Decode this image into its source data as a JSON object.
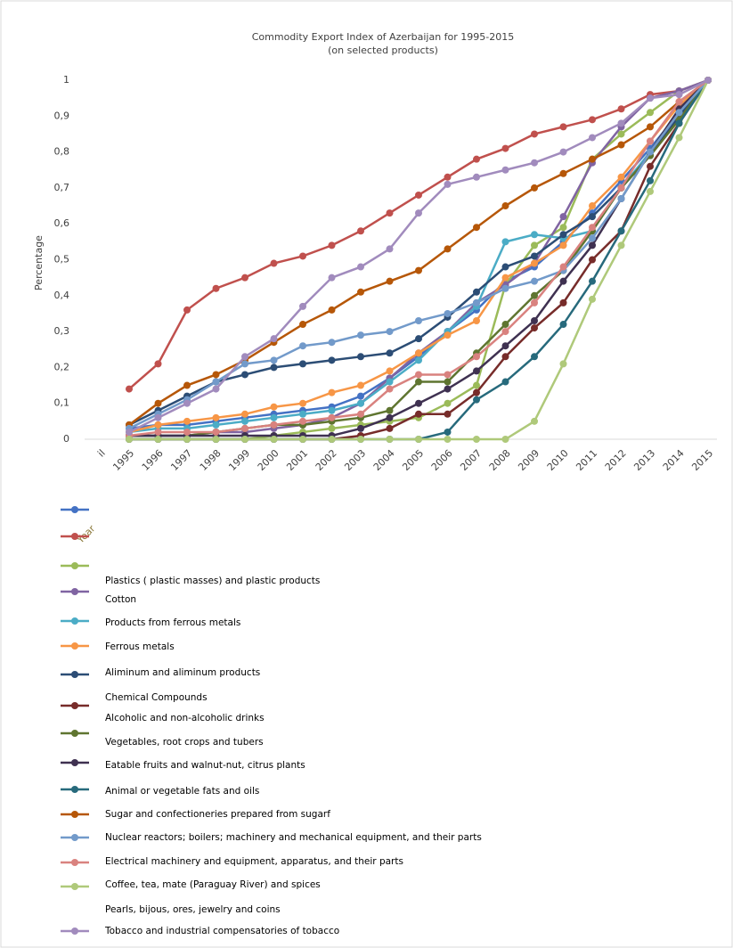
{
  "chart_data": {
    "type": "line",
    "title": "Commodity  Export Index of Azerbaijan for 1995-2015",
    "subtitle": "(on selected products)",
    "y_label": "Percentage",
    "x_label": "Year",
    "categories": [
      "il",
      "1995",
      "1996",
      "1997",
      "1998",
      "1999",
      "2000",
      "2001",
      "2002",
      "2003",
      "2004",
      "2005",
      "2006",
      "2007",
      "2008",
      "2009",
      "2010",
      "2011",
      "2012",
      "2013",
      "2014",
      "2015"
    ],
    "ylim": [
      0,
      1
    ],
    "yticks": [
      0,
      {
        "value": 0.1,
        "label": "0,1"
      },
      {
        "value": 0.2,
        "label": "0,2"
      },
      {
        "value": 0.3,
        "label": "0,3"
      },
      {
        "value": 0.4,
        "label": "0,4"
      },
      {
        "value": 0.5,
        "label": "0,5"
      },
      {
        "value": 0.6,
        "label": "0,6"
      },
      {
        "value": 0.7,
        "label": "0,7"
      },
      {
        "value": 0.8,
        "label": "0,8"
      },
      {
        "value": 0.9,
        "label": "0,9"
      },
      1
    ],
    "grid": false,
    "series": [
      {
        "name": "Plastics ( plastic masses) and  plastic products",
        "color": "#4472c4",
        "values": [
          null,
          0.03,
          0.04,
          0.04,
          0.05,
          0.06,
          0.07,
          0.08,
          0.09,
          0.12,
          0.17,
          0.23,
          0.3,
          0.36,
          0.44,
          0.48,
          0.55,
          0.63,
          0.72,
          0.81,
          0.91,
          1
        ]
      },
      {
        "name": "Cotton",
        "color": "#c0504d",
        "values": [
          null,
          0.14,
          0.21,
          0.36,
          0.42,
          0.45,
          0.49,
          0.51,
          0.54,
          0.58,
          0.63,
          0.68,
          0.73,
          0.78,
          0.81,
          0.85,
          0.87,
          0.89,
          0.92,
          0.96,
          0.97,
          1
        ]
      },
      {
        "name": "Products from ferrous  metals",
        "color": "#9bbb59",
        "values": [
          null,
          0,
          0,
          0,
          0,
          0,
          0.01,
          0.02,
          0.03,
          0.04,
          0.05,
          0.06,
          0.1,
          0.15,
          0.43,
          0.54,
          0.59,
          0.78,
          0.85,
          0.91,
          0.97,
          1
        ]
      },
      {
        "name": "Ferrous metals",
        "color": "#8064a2",
        "values": [
          null,
          0.01,
          0.01,
          0.01,
          0.02,
          0.02,
          0.03,
          0.04,
          0.06,
          0.1,
          0.17,
          0.24,
          0.3,
          0.38,
          0.43,
          0.49,
          0.62,
          0.77,
          0.87,
          0.95,
          0.97,
          1
        ]
      },
      {
        "name": "Aliminum and aliminum  products",
        "color": "#4bacc6",
        "values": [
          null,
          0.02,
          0.03,
          0.03,
          0.04,
          0.05,
          0.06,
          0.07,
          0.08,
          0.1,
          0.16,
          0.22,
          0.3,
          0.37,
          0.55,
          0.57,
          0.56,
          0.58,
          0.7,
          0.8,
          0.92,
          1
        ]
      },
      {
        "name": "Chemical  Compounds",
        "color": "#f79646",
        "values": [
          null,
          0.02,
          0.04,
          0.05,
          0.06,
          0.07,
          0.09,
          0.1,
          0.13,
          0.15,
          0.19,
          0.24,
          0.29,
          0.33,
          0.45,
          0.49,
          0.54,
          0.65,
          0.73,
          0.83,
          0.93,
          1
        ]
      },
      {
        "name": "Alcoholic and non-alcoholic  drinks",
        "color": "#2c4d75",
        "values": [
          null,
          0.04,
          0.08,
          0.12,
          0.16,
          0.18,
          0.2,
          0.21,
          0.22,
          0.23,
          0.24,
          0.28,
          0.34,
          0.41,
          0.48,
          0.51,
          0.57,
          0.62,
          0.7,
          0.79,
          0.9,
          1
        ]
      },
      {
        "name": "Vegetables, root crops and tubers",
        "color": "#772c2a",
        "values": [
          null,
          0,
          0,
          0,
          0,
          0,
          0,
          0,
          0,
          0.01,
          0.03,
          0.07,
          0.07,
          0.13,
          0.23,
          0.31,
          0.38,
          0.5,
          0.58,
          0.76,
          0.88,
          1
        ]
      },
      {
        "name": "Eatable fruits and walnut-nut, citrus plants",
        "color": "#5f7530",
        "values": [
          null,
          0.01,
          0.01,
          0.01,
          0.02,
          0.03,
          0.04,
          0.04,
          0.05,
          0.06,
          0.08,
          0.16,
          0.16,
          0.24,
          0.32,
          0.4,
          0.47,
          0.58,
          0.7,
          0.79,
          0.89,
          1
        ]
      },
      {
        "name": "Animal or vegetable fats and oils",
        "color": "#3f3151",
        "values": [
          null,
          0.01,
          0.01,
          0.01,
          0.01,
          0.01,
          0.01,
          0.01,
          0.01,
          0.03,
          0.06,
          0.1,
          0.14,
          0.19,
          0.26,
          0.33,
          0.44,
          0.54,
          0.67,
          0.8,
          0.92,
          1
        ]
      },
      {
        "name": "Sugar and confectioneries  prepared from sugarf",
        "color": "#276a7c",
        "values": [
          null,
          0,
          0,
          0,
          0,
          0,
          0,
          0,
          0,
          0,
          0,
          0,
          0.02,
          0.11,
          0.16,
          0.23,
          0.32,
          0.44,
          0.58,
          0.72,
          0.88,
          1
        ]
      },
      {
        "name": "Nuclear reactors; boilers; machinery and mechanical equipment,  and their parts",
        "color": "#b65708",
        "values": [
          null,
          0.04,
          0.1,
          0.15,
          0.18,
          0.22,
          0.27,
          0.32,
          0.36,
          0.41,
          0.44,
          0.47,
          0.53,
          0.59,
          0.65,
          0.7,
          0.74,
          0.78,
          0.82,
          0.87,
          0.94,
          1
        ]
      },
      {
        "name": "Electrical machinery and equipment,  apparatus,  and their parts",
        "color": "#729aca",
        "values": [
          null,
          0.03,
          0.07,
          0.11,
          0.16,
          0.21,
          0.22,
          0.26,
          0.27,
          0.29,
          0.3,
          0.33,
          0.35,
          0.38,
          0.42,
          0.44,
          0.47,
          0.56,
          0.67,
          0.8,
          0.91,
          1
        ]
      },
      {
        "name": "Coffee,  tea, mate (Paraguay River) and spices",
        "color": "#d9827f",
        "values": [
          null,
          0.01,
          0.02,
          0.02,
          0.02,
          0.03,
          0.04,
          0.05,
          0.06,
          0.07,
          0.14,
          0.18,
          0.18,
          0.23,
          0.3,
          0.38,
          0.48,
          0.59,
          0.7,
          0.83,
          0.94,
          1
        ]
      },
      {
        "name": "Pearls, bijous,  ores,  jewelry and coins",
        "color": "#afc97a",
        "values": [
          null,
          0,
          0,
          0,
          0,
          0,
          0,
          0,
          0,
          0,
          0,
          0,
          0,
          0,
          0,
          0.05,
          0.21,
          0.39,
          0.54,
          0.69,
          0.84,
          1
        ]
      },
      {
        "name": "Tobacco and industrial compensatories  of tobacco",
        "color": "#a18bbd",
        "values": [
          null,
          0.02,
          0.06,
          0.1,
          0.14,
          0.23,
          0.28,
          0.37,
          0.45,
          0.48,
          0.53,
          0.63,
          0.71,
          0.73,
          0.75,
          0.77,
          0.8,
          0.84,
          0.88,
          0.95,
          0.96,
          1
        ]
      }
    ]
  }
}
